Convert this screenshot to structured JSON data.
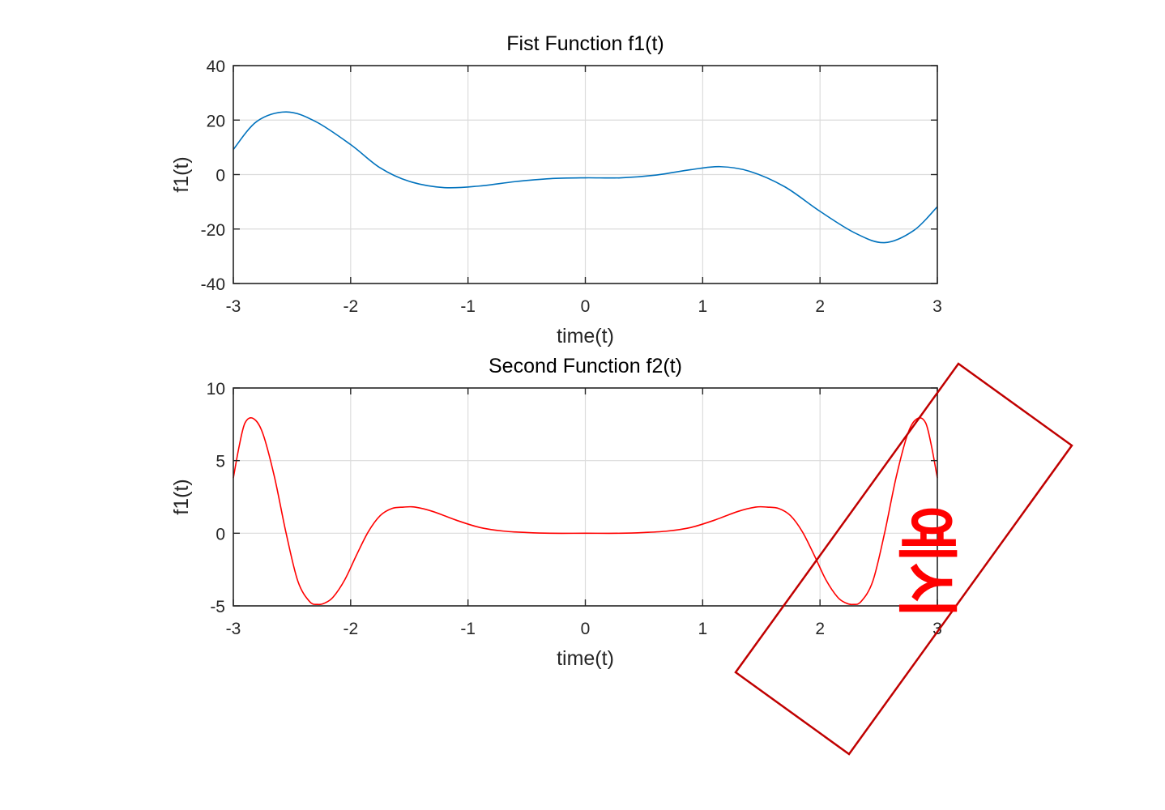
{
  "chart_data": [
    {
      "type": "line",
      "title": "Fist Function f1(t)",
      "xlabel": "time(t)",
      "ylabel": "f1(t)",
      "xlim": [
        -3,
        3
      ],
      "ylim": [
        -40,
        40
      ],
      "xticks": [
        -3,
        -2,
        -1,
        0,
        1,
        2,
        3
      ],
      "yticks": [
        -40,
        -20,
        0,
        20,
        40
      ],
      "grid": true,
      "series": [
        {
          "color": "#0072BD",
          "x": [
            -3.0,
            -2.8,
            -2.55,
            -2.3,
            -2.0,
            -1.75,
            -1.5,
            -1.2,
            -0.9,
            -0.6,
            -0.3,
            0.0,
            0.3,
            0.6,
            0.9,
            1.15,
            1.4,
            1.7,
            2.0,
            2.3,
            2.55,
            2.8,
            3.0
          ],
          "y": [
            9.2,
            19.5,
            23.0,
            19.5,
            11.0,
            2.5,
            -2.5,
            -4.8,
            -4.2,
            -2.6,
            -1.5,
            -1.2,
            -1.2,
            -0.2,
            1.8,
            2.9,
            1.2,
            -4.5,
            -13.5,
            -21.5,
            -25.0,
            -20.5,
            -11.8
          ]
        }
      ]
    },
    {
      "type": "line",
      "title": "Second Function f2(t)",
      "xlabel": "time(t)",
      "ylabel": "f1(t)",
      "xlim": [
        -3,
        3
      ],
      "ylim": [
        -5,
        10
      ],
      "xticks": [
        -3,
        -2,
        -1,
        0,
        1,
        2,
        3
      ],
      "yticks": [
        -5,
        0,
        5,
        10
      ],
      "grid": true,
      "series": [
        {
          "color": "#FF0000",
          "x": [
            -3.0,
            -2.95,
            -2.9,
            -2.83,
            -2.75,
            -2.65,
            -2.55,
            -2.45,
            -2.35,
            -2.28,
            -2.22,
            -2.15,
            -2.05,
            -1.95,
            -1.85,
            -1.75,
            -1.65,
            -1.55,
            -1.45,
            -1.3,
            -1.1,
            -0.9,
            -0.7,
            -0.5,
            -0.3,
            0.0,
            0.3,
            0.5,
            0.7,
            0.9,
            1.1,
            1.3,
            1.45,
            1.55,
            1.65,
            1.75,
            1.85,
            1.95,
            2.05,
            2.15,
            2.22,
            2.28,
            2.35,
            2.45,
            2.55,
            2.65,
            2.75,
            2.83,
            2.9,
            2.95,
            3.0
          ],
          "y": [
            3.8,
            6.0,
            7.6,
            7.9,
            6.9,
            3.9,
            0.0,
            -3.3,
            -4.7,
            -4.9,
            -4.8,
            -4.4,
            -3.2,
            -1.5,
            0.1,
            1.2,
            1.7,
            1.8,
            1.8,
            1.5,
            0.9,
            0.4,
            0.15,
            0.05,
            0.0,
            0.0,
            0.0,
            0.05,
            0.15,
            0.4,
            0.9,
            1.5,
            1.8,
            1.8,
            1.7,
            1.2,
            0.1,
            -1.5,
            -3.2,
            -4.4,
            -4.8,
            -4.9,
            -4.7,
            -3.3,
            0.0,
            3.9,
            6.9,
            7.9,
            7.6,
            6.0,
            3.8
          ]
        }
      ]
    }
  ],
  "stamp": {
    "text": "예시",
    "color": "#C00000"
  }
}
